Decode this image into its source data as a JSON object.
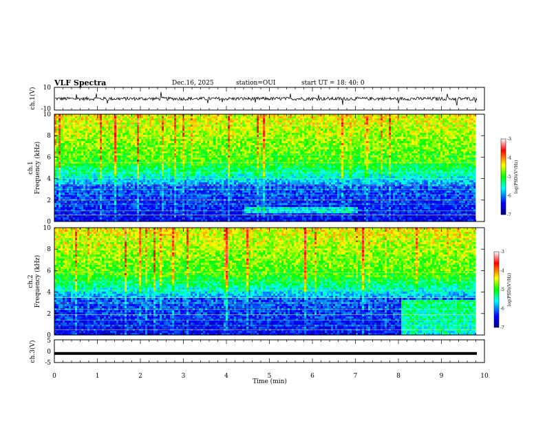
{
  "header": {
    "title": "VLF Spectra",
    "date": "Dec.16, 2025",
    "station": "station=OUI",
    "start": "start  UT =  18: 40: 0"
  },
  "colors": {
    "low": "#00008f",
    "mid_blue": "#0050ff",
    "cyan": "#00ffff",
    "green": "#30e050",
    "yellow": "#ffff00",
    "red": "#e00000"
  },
  "chart_data": [
    {
      "type": "line",
      "name": "ch1-waveform",
      "ylabel": "ch.1(V)",
      "ylim": [
        -10,
        10
      ],
      "yticks": [
        "10",
        "-10"
      ],
      "xlim": [
        0,
        10
      ],
      "description_values": {
        "baseline": 0,
        "typical_amplitude": 1.5,
        "spike_amplitude": 5
      }
    },
    {
      "type": "heatmap",
      "name": "ch1-spectrogram",
      "ylabel_line1": "ch.1",
      "ylabel_line2": "Frequency (kHz)",
      "ylim": [
        0,
        10
      ],
      "yticks": [
        "0",
        "2",
        "4",
        "6",
        "8",
        "10"
      ],
      "xlim": [
        0,
        9.8
      ],
      "colorbar": {
        "label": "log(PSD)(V²/Hz)",
        "range": [
          -7,
          -3
        ],
        "ticks": [
          "-3",
          "-4",
          "-5",
          "-6",
          "-7"
        ]
      }
    },
    {
      "type": "heatmap",
      "name": "ch2-spectrogram",
      "ylabel_line1": "ch.2",
      "ylabel_line2": "Frequency (kHz)",
      "ylim": [
        0,
        10
      ],
      "yticks": [
        "0",
        "2",
        "4",
        "6",
        "8",
        "10"
      ],
      "xlim": [
        0,
        9.8
      ],
      "colorbar": {
        "label": "log(PSD)(V²/Hz)",
        "range": [
          -7,
          -3
        ],
        "ticks": [
          "-3",
          "-4",
          "-5",
          "-6",
          "-7"
        ]
      }
    },
    {
      "type": "line",
      "name": "ch3-waveform",
      "ylabel": "ch.3(V)",
      "ylim": [
        -5,
        5
      ],
      "yticks": [
        "5",
        "0",
        "-5"
      ],
      "xlim": [
        0,
        10
      ],
      "description_values": {
        "level": -1
      }
    }
  ],
  "xaxis": {
    "label": "Time (min)",
    "ticks": [
      "0",
      "1",
      "2",
      "3",
      "4",
      "5",
      "6",
      "7",
      "8",
      "9",
      "10"
    ]
  }
}
